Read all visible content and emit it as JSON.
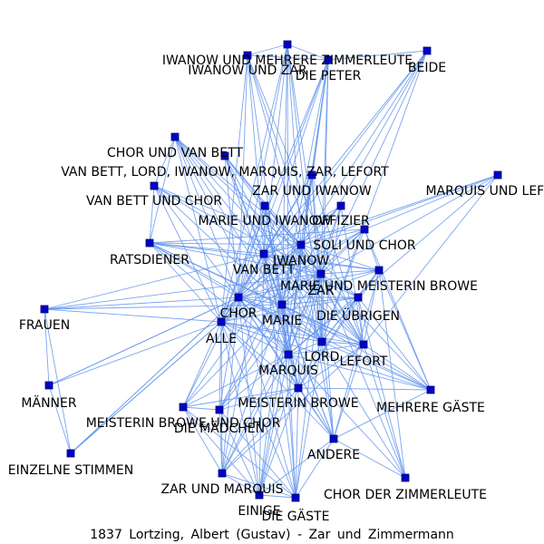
{
  "title": "1837 Lortzing, Albert (Gustav) - Zar und Zimmermann",
  "colors": {
    "edge": "#6495ED",
    "node": "#0000CC",
    "label": "#000000"
  },
  "nodes": [
    {
      "id": "iwanow_mehrere",
      "label": "IWANOW UND MEHRERE ZIMMERLEUTE"
    },
    {
      "id": "iwanow_zar",
      "label": "IWANOW UND ZAR"
    },
    {
      "id": "die_peter",
      "label": "DIE PETER"
    },
    {
      "id": "beide",
      "label": "BEIDE"
    },
    {
      "id": "chor_vanbett",
      "label": "CHOR UND VAN BETT"
    },
    {
      "id": "vanbett_lord",
      "label": "VAN BETT, LORD, IWANOW, MARQUIS, ZAR, LEFORT"
    },
    {
      "id": "marquis_lefort",
      "label": "MARQUIS UND LEFORT"
    },
    {
      "id": "vanbett_chor",
      "label": "VAN BETT UND CHOR"
    },
    {
      "id": "zar_iwanow",
      "label": "ZAR UND IWANOW"
    },
    {
      "id": "marie_iwanow",
      "label": "MARIE UND IWANOW"
    },
    {
      "id": "offizier",
      "label": "OFFIZIER"
    },
    {
      "id": "soli_chor",
      "label": "SOLI UND CHOR"
    },
    {
      "id": "ratsdiener",
      "label": "RATSDIENER"
    },
    {
      "id": "iwanow",
      "label": "IWANOW"
    },
    {
      "id": "vanbett",
      "label": "VAN BETT"
    },
    {
      "id": "marie_browe",
      "label": "MARIE UND MEISTERIN BROWE"
    },
    {
      "id": "zar",
      "label": "ZAR"
    },
    {
      "id": "frauen",
      "label": "FRAUEN"
    },
    {
      "id": "chor",
      "label": "CHOR"
    },
    {
      "id": "marie",
      "label": "MARIE"
    },
    {
      "id": "die_uebrigen",
      "label": "DIE ÜBRIGEN"
    },
    {
      "id": "alle",
      "label": "ALLE"
    },
    {
      "id": "lord",
      "label": "LORD"
    },
    {
      "id": "lefort",
      "label": "LEFORT"
    },
    {
      "id": "marquis",
      "label": "MARQUIS"
    },
    {
      "id": "maenner",
      "label": "MÄNNER"
    },
    {
      "id": "meisterin_browe",
      "label": "MEISTERIN BROWE"
    },
    {
      "id": "mehrere_gaeste",
      "label": "MEHRERE GÄSTE"
    },
    {
      "id": "browe_chor",
      "label": "MEISTERIN BROWE UND CHOR"
    },
    {
      "id": "die_maedchen",
      "label": "DIE MÄDCHEN"
    },
    {
      "id": "andere",
      "label": "ANDERE"
    },
    {
      "id": "einzelne",
      "label": "EINZELNE STIMMEN"
    },
    {
      "id": "zar_marquis",
      "label": "ZAR UND MARQUIS"
    },
    {
      "id": "chor_zimmerleute",
      "label": "CHOR DER ZIMMERLEUTE"
    },
    {
      "id": "einige",
      "label": "EINIGE"
    },
    {
      "id": "die_gaeste",
      "label": "DIE GÄSTE"
    }
  ]
}
